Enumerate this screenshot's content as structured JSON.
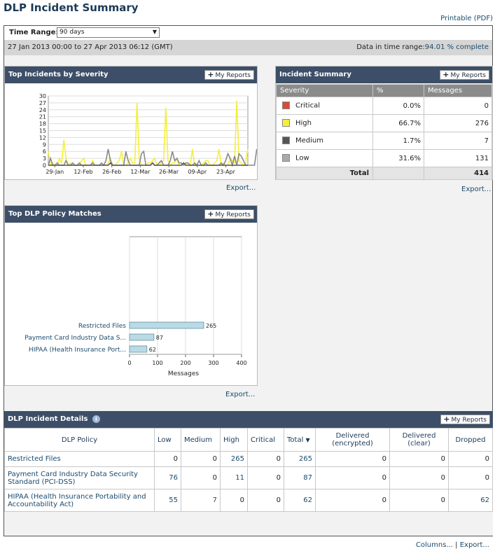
{
  "page": {
    "title": "DLP Incident Summary",
    "printable": "Printable (PDF)"
  },
  "time_range": {
    "label": "Time Range:",
    "value": "90 days",
    "dates": "27 Jan 2013 00:00 to 27 Apr 2013 06:12 (GMT)",
    "data_label": "Data in time range:",
    "data_value": "94.01 % complete"
  },
  "common": {
    "my_reports": "My Reports",
    "export": "Export...",
    "columns": "Columns...",
    "separator": "|"
  },
  "top_incidents": {
    "title": "Top Incidents by Severity",
    "chart_data": {
      "type": "line",
      "y_ticks": [
        0,
        3,
        6,
        9,
        12,
        15,
        18,
        21,
        24,
        27,
        30
      ],
      "ylim": [
        0,
        30
      ],
      "x_labels": [
        "29-Jan",
        "12-Feb",
        "26-Feb",
        "12-Mar",
        "26-Mar",
        "09-Apr",
        "23-Apr"
      ],
      "series": [
        {
          "color": "#f5ef3a",
          "values": [
            6,
            0,
            1,
            0,
            0,
            3,
            1,
            11,
            3,
            0,
            1,
            0,
            0,
            0,
            0,
            2,
            3,
            0,
            0,
            0,
            2,
            0,
            0,
            0,
            0,
            0,
            0,
            1,
            3,
            0,
            0,
            1,
            2,
            6,
            0,
            0,
            1,
            3,
            1,
            1,
            27,
            3,
            0,
            0,
            0,
            1,
            1,
            2,
            3,
            0,
            0,
            1,
            2,
            25,
            2,
            0,
            1,
            1,
            3,
            0,
            0,
            0,
            0,
            1,
            0,
            7,
            0,
            0,
            0,
            0,
            1,
            2,
            2,
            0,
            0,
            1,
            2,
            7,
            0,
            1,
            0,
            0,
            3,
            2,
            1,
            28,
            2,
            1,
            0,
            1,
            7
          ]
        },
        {
          "color": "#8a8a8a",
          "values": [
            0,
            3,
            0,
            0,
            1,
            0,
            0,
            0,
            2,
            0,
            0,
            1,
            0,
            0,
            1,
            0,
            0,
            0,
            0,
            0,
            1,
            0,
            0,
            0,
            1,
            0,
            2,
            7,
            2,
            0,
            0,
            0,
            0,
            0,
            0,
            6,
            2,
            0,
            0,
            0,
            0,
            0,
            5,
            6,
            0,
            0,
            0,
            1,
            0,
            0,
            1,
            2,
            0,
            0,
            0,
            2,
            6,
            2,
            3,
            1,
            1,
            0,
            1,
            1,
            0,
            0,
            1,
            0,
            2,
            0,
            0,
            1,
            0,
            0,
            0,
            0,
            0,
            0,
            1,
            0,
            2,
            5,
            3,
            0,
            4,
            0,
            5,
            4,
            2,
            0,
            0,
            0,
            0,
            0,
            7
          ]
        },
        {
          "color": "#555555",
          "values": [
            0,
            0,
            0,
            0,
            0,
            0,
            0,
            0,
            0,
            0,
            0,
            0,
            0,
            0,
            0,
            0,
            0,
            0,
            0,
            0,
            0,
            0,
            0,
            0,
            0,
            0,
            0,
            0,
            1,
            0,
            0,
            0,
            0,
            0,
            0,
            0,
            0,
            0,
            0,
            0,
            0,
            0,
            0,
            0,
            0,
            0,
            0,
            1,
            0,
            0,
            0,
            0,
            0,
            0,
            0,
            0,
            0,
            0,
            0,
            0,
            0,
            1,
            0,
            0,
            0,
            0,
            0,
            0,
            0,
            0,
            0,
            0,
            0,
            0,
            0,
            0,
            0,
            0,
            0,
            0,
            0,
            0,
            0,
            0,
            0,
            0,
            0,
            0,
            0,
            0,
            0
          ]
        }
      ]
    }
  },
  "incident_summary": {
    "title": "Incident Summary",
    "headers": [
      "Severity",
      "%",
      "Messages"
    ],
    "rows": [
      {
        "label": "Critical",
        "color": "#d84a3a",
        "pct": "0.0%",
        "msgs": "0"
      },
      {
        "label": "High",
        "color": "#f5ef3a",
        "pct": "66.7%",
        "msgs": "276"
      },
      {
        "label": "Medium",
        "color": "#555555",
        "pct": "1.7%",
        "msgs": "7"
      },
      {
        "label": "Low",
        "color": "#aaaaaa",
        "pct": "31.6%",
        "msgs": "131"
      }
    ],
    "total_label": "Total",
    "total_value": "414"
  },
  "top_policy": {
    "title": "Top DLP Policy Matches",
    "chart_data": {
      "type": "bar",
      "categories": [
        "Restricted Files",
        "Payment Card Industry Data S...",
        "HIPAA (Health Insurance Port..."
      ],
      "values": [
        265,
        87,
        62
      ],
      "xlim": [
        0,
        400
      ],
      "x_ticks": [
        0,
        100,
        200,
        300,
        400
      ],
      "xlabel": "Messages",
      "color": "#b8dbe6"
    }
  },
  "details": {
    "title": "DLP Incident Details",
    "info_icon": "i",
    "headers": {
      "policy": "DLP Policy",
      "low": "Low",
      "medium": "Medium",
      "high": "High",
      "critical": "Critical",
      "total": "Total",
      "delivered_encrypted": "Delivered (encrypted)",
      "delivered_clear": "Delivered (clear)",
      "dropped": "Dropped"
    },
    "rows": [
      {
        "policy": "Restricted Files",
        "low": "0",
        "medium": "0",
        "high": "265",
        "critical": "0",
        "total": "265",
        "enc": "0",
        "clear": "0",
        "dropped": "0"
      },
      {
        "policy": "Payment Card Industry Data Security Standard (PCI-DSS)",
        "low": "76",
        "medium": "0",
        "high": "11",
        "critical": "0",
        "total": "87",
        "enc": "0",
        "clear": "0",
        "dropped": "0"
      },
      {
        "policy": "HIPAA (Health Insurance Portability and Accountability Act)",
        "low": "55",
        "medium": "7",
        "high": "0",
        "critical": "0",
        "total": "62",
        "enc": "0",
        "clear": "0",
        "dropped": "62"
      }
    ]
  }
}
